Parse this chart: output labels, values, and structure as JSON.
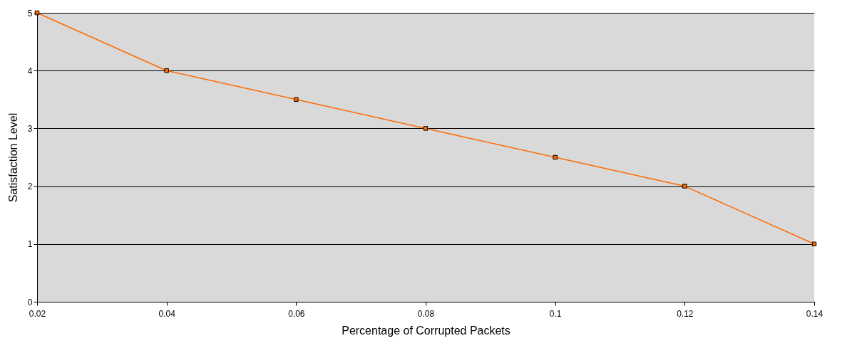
{
  "chart_data": {
    "type": "line",
    "xlabel": "Percentage of Corrupted Packets",
    "ylabel": "Satisfaction Level",
    "x": [
      0.02,
      0.04,
      0.06,
      0.08,
      0.1,
      0.12,
      0.14
    ],
    "series": [
      {
        "color": "#ff6a00",
        "values": [
          5,
          4,
          3.5,
          3,
          2.5,
          2,
          1
        ]
      }
    ],
    "xlim": [
      0.02,
      0.14
    ],
    "xticks": [
      0.02,
      0.04,
      0.06,
      0.08,
      0.1,
      0.12,
      0.14
    ],
    "ylim": [
      0,
      5
    ],
    "yticks": [
      0,
      1,
      2,
      3,
      4,
      5
    ],
    "grid": "y",
    "marker": "square",
    "line_style": "solid"
  }
}
